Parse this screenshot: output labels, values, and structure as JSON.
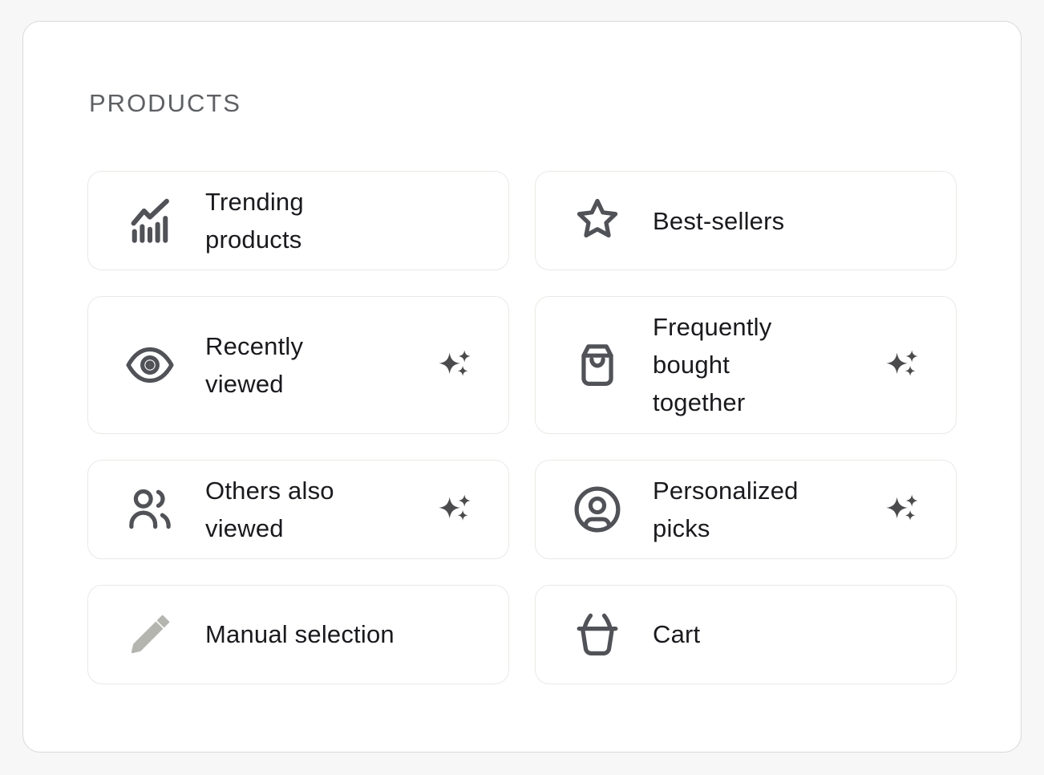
{
  "panel": {
    "heading": "PRODUCTS",
    "options": [
      {
        "id": "trending-products",
        "label": "Trending\nproducts",
        "icon": "trending-chart-icon",
        "has_ai_sparkle": false
      },
      {
        "id": "best-sellers",
        "label": "Best-sellers",
        "icon": "star-icon",
        "has_ai_sparkle": false
      },
      {
        "id": "recently-viewed",
        "label": "Recently\nviewed",
        "icon": "eye-icon",
        "has_ai_sparkle": true
      },
      {
        "id": "frequently-bought-together",
        "label": "Frequently\nbought\ntogether",
        "icon": "shopping-bag-icon",
        "has_ai_sparkle": true
      },
      {
        "id": "others-also-viewed",
        "label": "Others also\nviewed",
        "icon": "users-icon",
        "has_ai_sparkle": true
      },
      {
        "id": "personalized-picks",
        "label": "Personalized\npicks",
        "icon": "user-circle-icon",
        "has_ai_sparkle": true
      },
      {
        "id": "manual-selection",
        "label": "Manual selection",
        "icon": "pencil-icon",
        "has_ai_sparkle": false
      },
      {
        "id": "cart",
        "label": "Cart",
        "icon": "basket-icon",
        "has_ai_sparkle": false
      }
    ]
  },
  "colors": {
    "page_bg": "#f7f7f7",
    "panel_bg": "#ffffff",
    "panel_border": "#d9d9d9",
    "card_border": "#e9e9e5",
    "text": "#1a1a1e",
    "heading": "#5e6063",
    "icon_stroke": "#515257",
    "ai_sparkle": "#4b4b4e",
    "pencil_fill": "#b5b5b0"
  }
}
